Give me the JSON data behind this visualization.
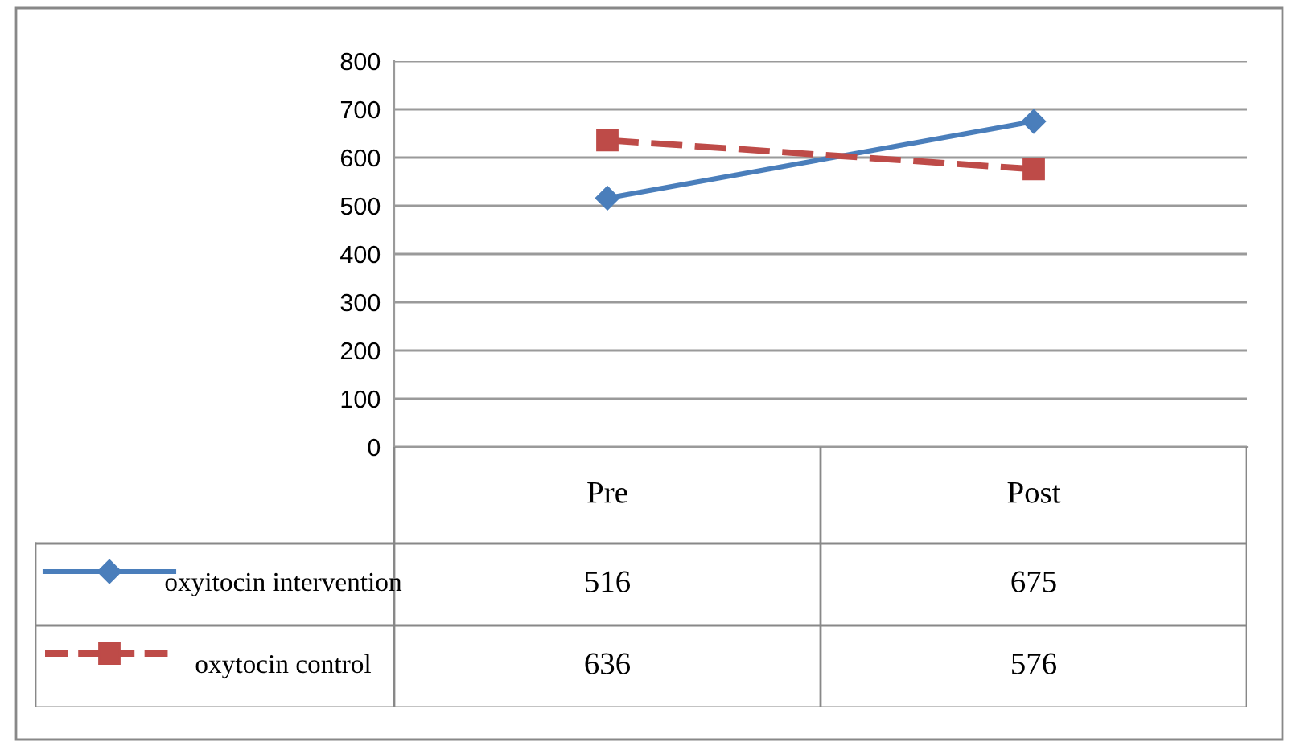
{
  "chart_data": {
    "type": "line",
    "categories": [
      "Pre",
      "Post"
    ],
    "series": [
      {
        "name": "oxyitocin intervention",
        "color": "#4a7ebb",
        "values": [
          516,
          675
        ],
        "marker": "diamond",
        "line_style": "solid"
      },
      {
        "name": "oxytocin control",
        "color": "#be4b48",
        "values": [
          636,
          576
        ],
        "marker": "square",
        "line_style": "dashed"
      }
    ],
    "ylim": [
      0,
      800
    ],
    "yticks": [
      0,
      100,
      200,
      300,
      400,
      500,
      600,
      700,
      800
    ],
    "grid": "y",
    "data_labels": true,
    "legend": "bottom left"
  }
}
